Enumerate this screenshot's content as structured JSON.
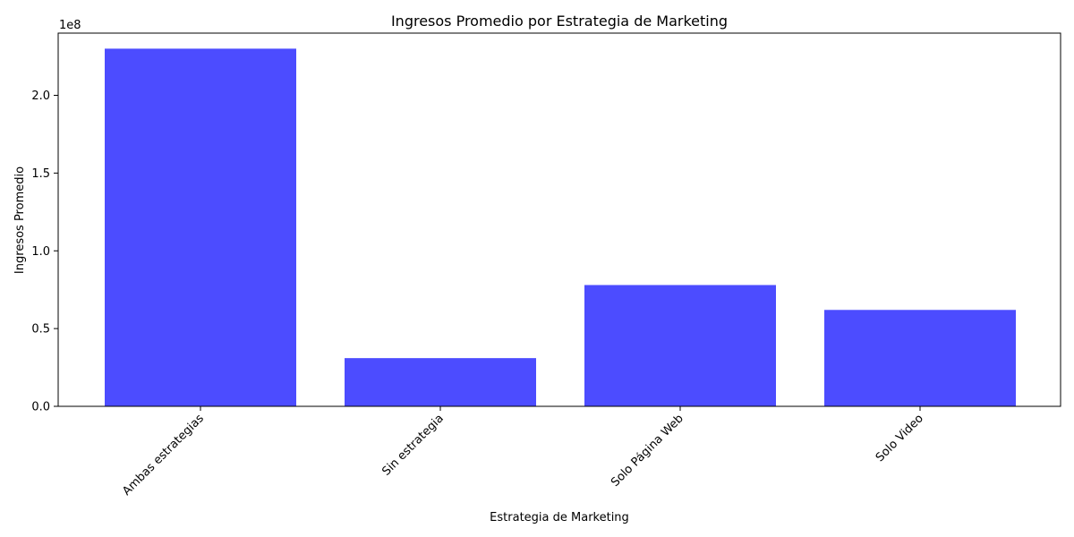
{
  "chart_data": {
    "type": "bar",
    "title": "Ingresos Promedio por Estrategia de Marketing",
    "xlabel": "Estrategia de Marketing",
    "ylabel": "Ingresos Promedio",
    "y_multiplier_label": "1e8",
    "y_multiplier": 100000000,
    "categories": [
      "Ambas estrategias",
      "Sin estrategia",
      "Solo Página Web",
      "Solo Video"
    ],
    "values": [
      230000000,
      31000000,
      78000000,
      62000000
    ],
    "ylim": [
      0,
      240000000
    ],
    "y_ticks": [
      0,
      50000000,
      100000000,
      150000000,
      200000000
    ],
    "y_tick_labels": [
      "0.0",
      "0.5",
      "1.0",
      "1.5",
      "2.0"
    ],
    "bar_color": "#4c4cff",
    "grid": false,
    "legend": false
  }
}
